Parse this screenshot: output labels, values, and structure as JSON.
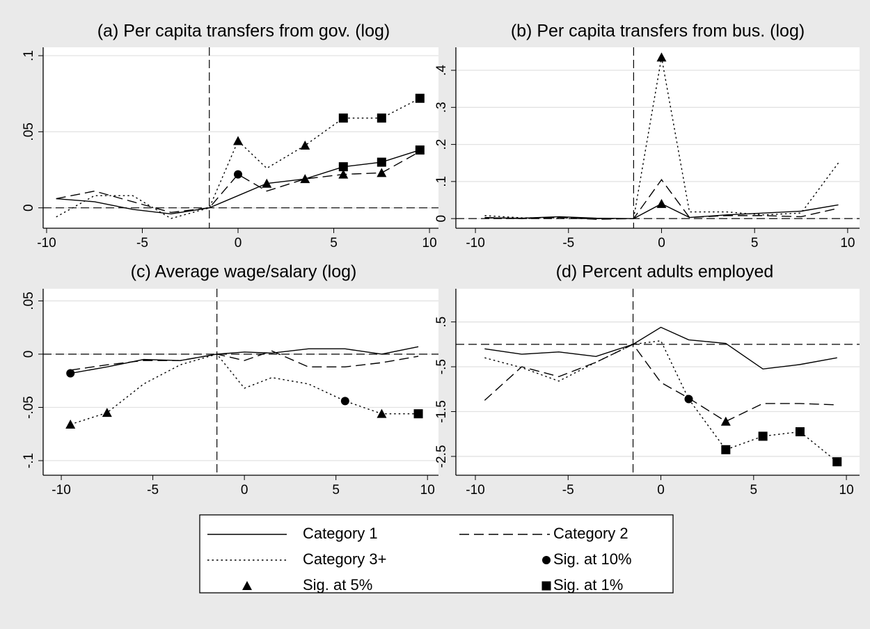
{
  "chart_data": [
    {
      "type": "line",
      "title": "(a) Per capita transfers from gov. (log)",
      "x": [
        -9.5,
        -7.5,
        -5.5,
        -3.5,
        -1.5,
        0,
        1.5,
        3.5,
        5.5,
        7.5,
        9.5
      ],
      "xlim": [
        -10.18,
        10.47
      ],
      "xticks": [
        -10,
        -5,
        0,
        5,
        10
      ],
      "ylim": [
        -0.0134,
        0.1055
      ],
      "yticks": [
        0,
        {
          "value": 0.05,
          "label": ".05"
        },
        {
          "value": 0.1,
          "label": ".1"
        }
      ],
      "grid": true,
      "hline": 0,
      "vline": -1.5,
      "color": "#000000",
      "series": [
        {
          "line": "solid",
          "values": [
            0.006,
            0.004,
            -0.001,
            -0.004,
            0,
            0.008,
            0.016,
            0.019,
            0.027,
            0.03,
            0.038
          ]
        },
        {
          "line": "dashed",
          "values": [
            0.006,
            0.011,
            0.004,
            -0.003,
            0,
            0.022,
            0.011,
            0.019,
            0.022,
            0.023,
            0.037
          ]
        },
        {
          "line": "dotted",
          "values": [
            -0.006,
            0.008,
            0.008,
            -0.007,
            0,
            0.044,
            0.026,
            0.041,
            0.059,
            0.059,
            0.072
          ]
        }
      ],
      "markers": [
        {
          "marker": "circle",
          "x": [
            0
          ],
          "values": [
            0.022
          ]
        },
        {
          "marker": "triangle",
          "x": [
            0,
            1.5,
            3.5,
            3.5,
            5.5,
            7.5
          ],
          "values": [
            0.044,
            0.016,
            0.041,
            0.019,
            0.022,
            0.023
          ]
        },
        {
          "marker": "square",
          "x": [
            5.5,
            7.5,
            9.5,
            5.5,
            7.5,
            9.5
          ],
          "values": [
            0.059,
            0.059,
            0.072,
            0.027,
            0.03,
            0.038
          ]
        }
      ]
    },
    {
      "type": "line",
      "title": "(b) Per capita transfers from bus. (log)",
      "x": [
        -9.5,
        -7.5,
        -5.5,
        -3.5,
        -1.5,
        0,
        1.5,
        3.5,
        5.5,
        7.5,
        9.5
      ],
      "xlim": [
        -11.05,
        10.64
      ],
      "xticks": [
        -10,
        -5,
        0,
        5,
        10
      ],
      "ylim": [
        -0.026,
        0.462
      ],
      "yticks": [
        0,
        {
          "value": 0.1,
          "label": ".1"
        },
        {
          "value": 0.2,
          "label": ".2"
        },
        {
          "value": 0.3,
          "label": ".3"
        },
        {
          "value": 0.4,
          "label": ".4"
        }
      ],
      "grid": true,
      "hline": 0,
      "vline": -1.5,
      "color": "#000000",
      "series": [
        {
          "line": "solid",
          "values": [
            0.002,
            0.001,
            0.005,
            0.001,
            0,
            0.04,
            0.003,
            0.01,
            0.015,
            0.02,
            0.037
          ]
        },
        {
          "line": "dashed",
          "values": [
            0.003,
            0,
            0.003,
            -0.002,
            0,
            0.105,
            0.003,
            0.008,
            0.008,
            0.005,
            0.028
          ]
        },
        {
          "line": "dotted",
          "values": [
            0.008,
            0.002,
            0.002,
            0,
            0,
            0.435,
            0.018,
            0.018,
            0.01,
            0.015,
            0.15
          ]
        }
      ],
      "markers": [
        {
          "marker": "triangle",
          "x": [
            0,
            0
          ],
          "values": [
            0.435,
            0.04
          ]
        }
      ]
    },
    {
      "type": "line",
      "title": "(c) Average wage/salary (log)",
      "x": [
        -9.5,
        -7.5,
        -5.5,
        -3.5,
        -1.5,
        0,
        1.5,
        3.5,
        5.5,
        7.5,
        9.5
      ],
      "xlim": [
        -10.99,
        10.6
      ],
      "xticks": [
        -10,
        -5,
        0,
        5,
        10
      ],
      "ylim": [
        -0.1137,
        0.0614
      ],
      "yticks": [
        {
          "value": -0.1,
          "label": "-.1"
        },
        {
          "value": -0.05,
          "label": "-.05"
        },
        0,
        {
          "value": 0.05,
          "label": ".05"
        }
      ],
      "grid": true,
      "hline": 0,
      "vline": -1.5,
      "color": "#000000",
      "series": [
        {
          "line": "solid",
          "values": [
            -0.018,
            -0.012,
            -0.005,
            -0.006,
            0,
            0.002,
            0.001,
            0.005,
            0.005,
            0,
            0.007
          ]
        },
        {
          "line": "dashed",
          "values": [
            -0.015,
            -0.01,
            -0.006,
            -0.006,
            0,
            -0.006,
            0.003,
            -0.012,
            -0.012,
            -0.008,
            -0.002
          ]
        },
        {
          "line": "dotted",
          "values": [
            -0.066,
            -0.055,
            -0.028,
            -0.01,
            0,
            -0.032,
            -0.022,
            -0.028,
            -0.044,
            -0.056,
            -0.056
          ]
        }
      ],
      "markers": [
        {
          "marker": "circle",
          "x": [
            -9.5,
            5.5
          ],
          "values": [
            -0.018,
            -0.044
          ]
        },
        {
          "marker": "triangle",
          "x": [
            -9.5,
            -7.5,
            7.5
          ],
          "values": [
            -0.066,
            -0.055,
            -0.056
          ]
        },
        {
          "marker": "square",
          "x": [
            9.5
          ],
          "values": [
            -0.056
          ]
        }
      ]
    },
    {
      "type": "line",
      "title": "(d) Percent adults employed",
      "x": [
        -9.5,
        -7.5,
        -5.5,
        -3.5,
        -1.5,
        0,
        1.5,
        3.5,
        5.5,
        7.5,
        9.5
      ],
      "xlim": [
        -11.05,
        10.71
      ],
      "xticks": [
        -10,
        -5,
        0,
        5,
        10
      ],
      "ylim": [
        -2.92,
        1.24
      ],
      "yticks": [
        {
          "value": -2.5,
          "label": "-2.5"
        },
        {
          "value": -1.5,
          "label": "-1.5"
        },
        {
          "value": -0.5,
          "label": "-.5"
        },
        {
          "value": 0.5,
          "label": ".5"
        }
      ],
      "grid": true,
      "hline": 0,
      "vline": -1.5,
      "color": "#000000",
      "series": [
        {
          "line": "solid",
          "values": [
            -0.1,
            -0.22,
            -0.17,
            -0.27,
            0,
            0.38,
            0.1,
            0.02,
            -0.55,
            -0.45,
            -0.3
          ]
        },
        {
          "line": "dashed",
          "values": [
            -1.25,
            -0.5,
            -0.72,
            -0.4,
            0,
            -0.85,
            -1.2,
            -1.72,
            -1.32,
            -1.32,
            -1.35
          ]
        },
        {
          "line": "dotted",
          "values": [
            -0.3,
            -0.52,
            -0.82,
            -0.4,
            0,
            0.08,
            -1.22,
            -2.35,
            -2.05,
            -1.95,
            -2.62
          ]
        }
      ],
      "markers": [
        {
          "marker": "circle",
          "x": [
            1.5
          ],
          "values": [
            -1.22
          ]
        },
        {
          "marker": "triangle",
          "x": [
            3.5
          ],
          "values": [
            -1.72
          ]
        },
        {
          "marker": "square",
          "x": [
            3.5,
            5.5,
            7.5,
            9.5
          ],
          "values": [
            -2.35,
            -2.05,
            -1.95,
            -2.62
          ]
        }
      ]
    }
  ],
  "legend": {
    "entries": [
      {
        "name": "Category 1",
        "line": "solid"
      },
      {
        "name": "Category 2",
        "line": "dashed"
      },
      {
        "name": "Category 3+",
        "line": "dotted"
      },
      {
        "name": "Sig. at 10%",
        "marker": "circle"
      },
      {
        "name": "Sig. at 5%",
        "marker": "triangle"
      },
      {
        "name": "Sig. at 1%",
        "marker": "square"
      }
    ]
  }
}
